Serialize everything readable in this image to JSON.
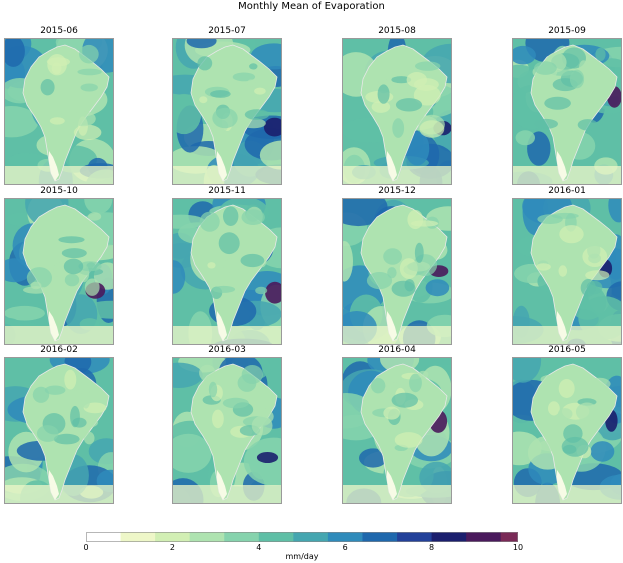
{
  "page": {
    "title": "Monthly Mean of Evaporation"
  },
  "chart_data": {
    "type": "heatmap",
    "title": "Monthly Mean of Evaporation",
    "panels": [
      "2015-06",
      "2015-07",
      "2015-08",
      "2015-09",
      "2015-10",
      "2015-11",
      "2015-12",
      "2016-01",
      "2016-02",
      "2016-03",
      "2016-04",
      "2016-05"
    ],
    "colorbar": {
      "label": "mm/day",
      "range": [
        0,
        10
      ],
      "ticks": [
        0,
        2,
        4,
        6,
        8,
        10
      ],
      "tick_labels": [
        "0",
        "2",
        "4",
        "6",
        "8",
        "10"
      ],
      "boundaries": [
        0,
        0.8,
        1.6,
        2.4,
        3.2,
        4.0,
        4.8,
        5.6,
        6.4,
        7.2,
        8.0,
        8.8,
        9.6,
        10
      ],
      "colors": [
        "#ffffff",
        "#eef7c8",
        "#d2efb4",
        "#aee3b0",
        "#86d3ad",
        "#5fbfa6",
        "#45a6b0",
        "#2f8bbb",
        "#1f68ad",
        "#23419a",
        "#1b1f6e",
        "#4a1a5c",
        "#7a2a57"
      ]
    },
    "grid": false,
    "legend": "bottom"
  }
}
